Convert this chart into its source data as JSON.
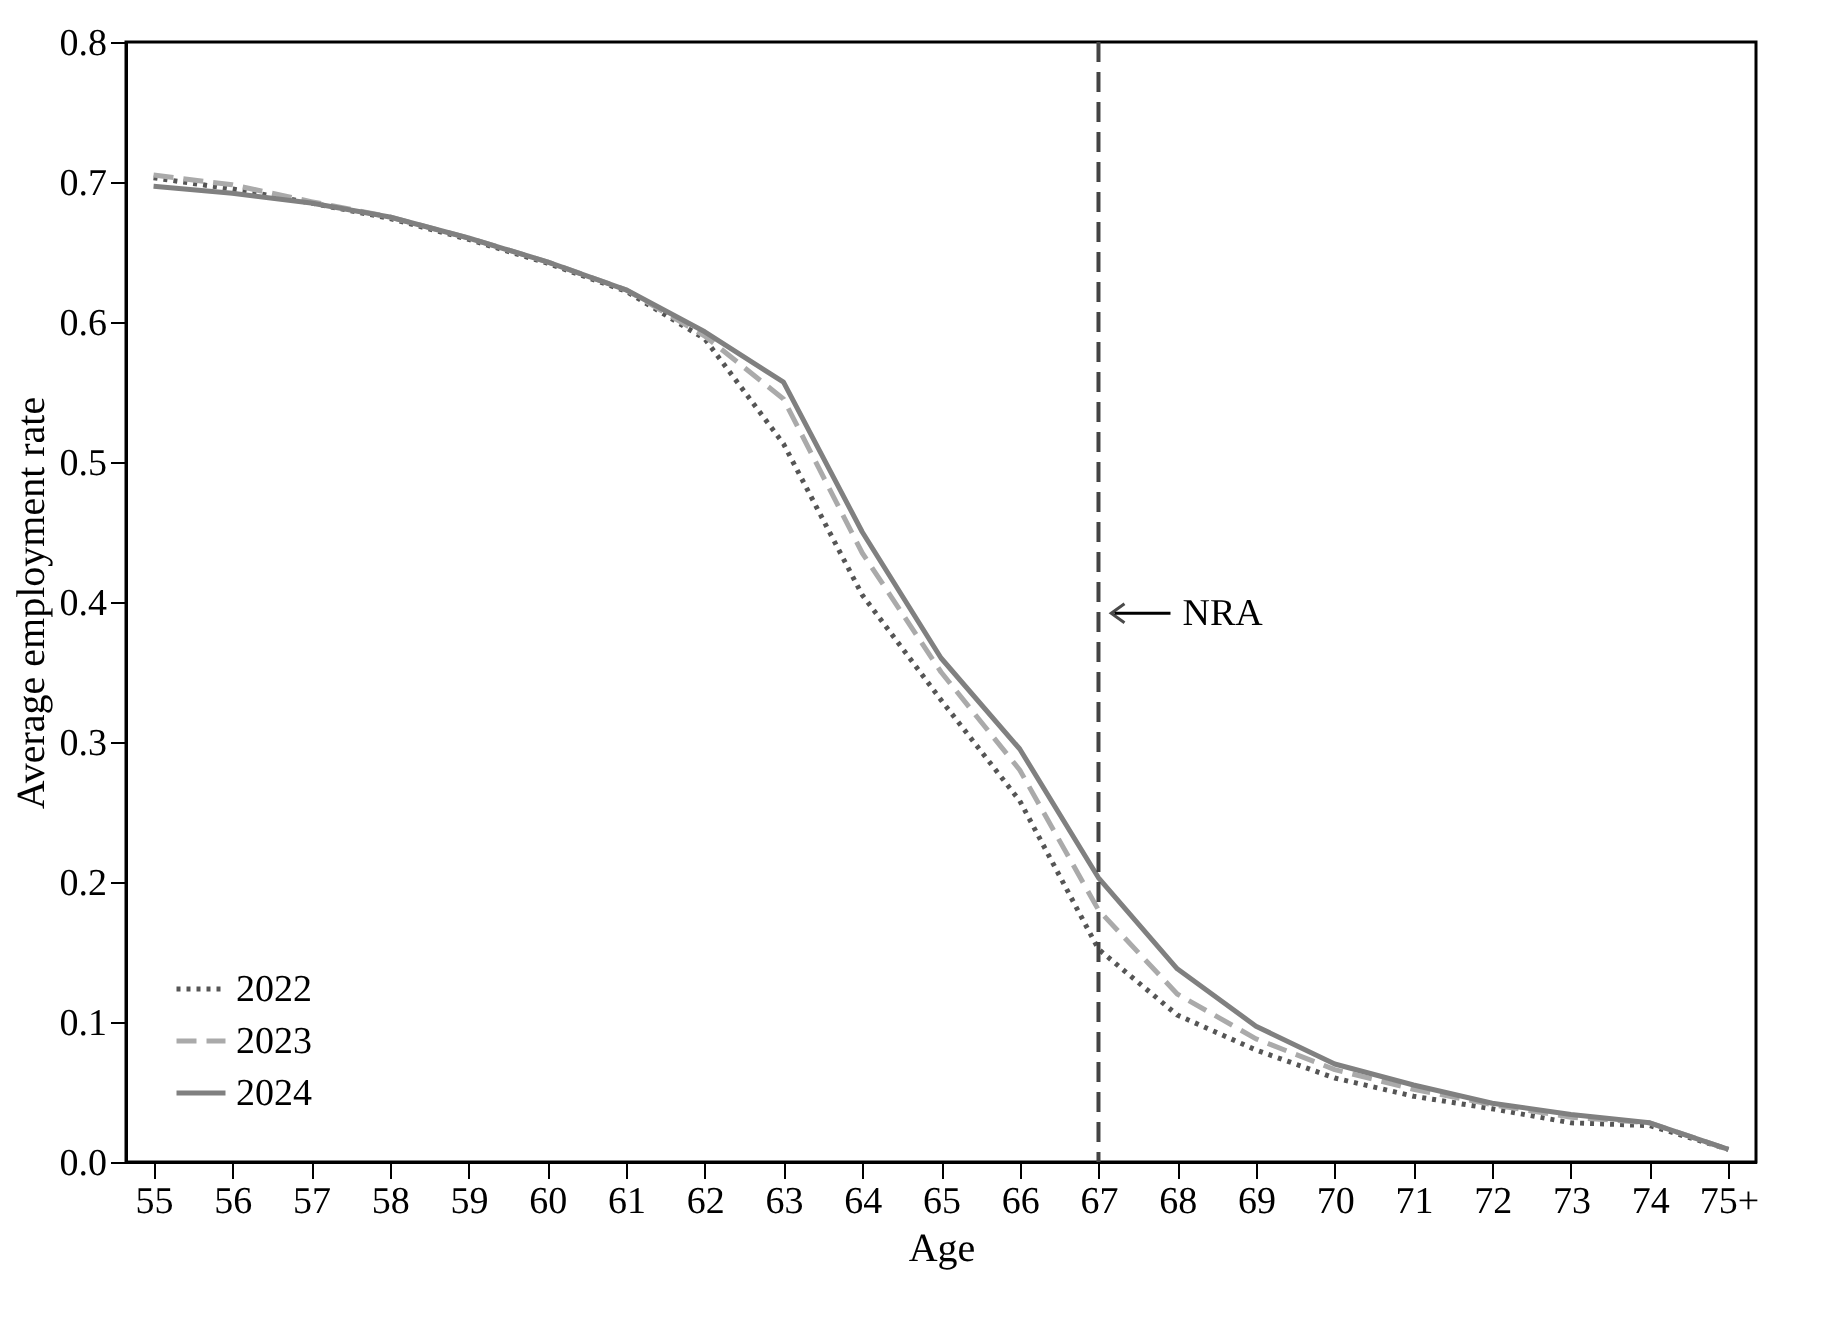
{
  "chart_data": {
    "type": "line",
    "xlabel": "Age",
    "ylabel": "Average employment rate",
    "categories": [
      "55",
      "56",
      "57",
      "58",
      "59",
      "60",
      "61",
      "62",
      "63",
      "64",
      "65",
      "66",
      "67",
      "68",
      "69",
      "70",
      "71",
      "72",
      "73",
      "74",
      "75+"
    ],
    "ylim": [
      0.0,
      0.8
    ],
    "yticks": [
      {
        "value": 0,
        "label": "0.0"
      },
      0.1,
      0.2,
      0.3,
      0.4,
      0.5,
      0.6,
      0.7,
      0.8
    ],
    "grid": false,
    "legend": "bottom left",
    "marker": "none",
    "series": [
      {
        "name": "2022",
        "color": "#555555",
        "line_style": "dotted",
        "values": [
          0.703,
          0.695,
          0.685,
          0.674,
          0.659,
          0.642,
          0.622,
          0.588,
          0.513,
          0.405,
          0.33,
          0.258,
          0.152,
          0.105,
          0.08,
          0.06,
          0.047,
          0.038,
          0.028,
          0.026,
          0.009
        ]
      },
      {
        "name": "2023",
        "color": "#aaaaaa",
        "line_style": "dashed",
        "values": [
          0.705,
          0.698,
          0.686,
          0.675,
          0.66,
          0.643,
          0.623,
          0.59,
          0.545,
          0.435,
          0.35,
          0.28,
          0.18,
          0.12,
          0.088,
          0.066,
          0.052,
          0.041,
          0.032,
          0.028,
          0.009
        ]
      },
      {
        "name": "2024",
        "color": "#808080",
        "line_style": "solid",
        "values": [
          0.697,
          0.692,
          0.685,
          0.675,
          0.66,
          0.643,
          0.623,
          0.593,
          0.557,
          0.45,
          0.36,
          0.295,
          0.203,
          0.138,
          0.097,
          0.07,
          0.055,
          0.042,
          0.034,
          0.028,
          0.009
        ]
      }
    ],
    "ref_lines": [
      {
        "axis": "x",
        "value": "67",
        "label": "NRA",
        "color": "#444444",
        "line_style": "dashed"
      }
    ]
  }
}
